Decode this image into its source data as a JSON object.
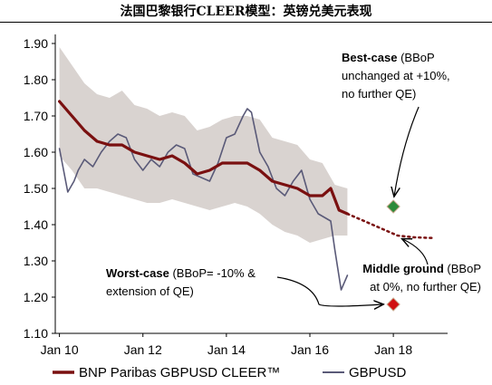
{
  "chart_data": {
    "type": "line",
    "title": "法国巴黎银行CLEER模型：英镑兑美元表现",
    "xlabel": "",
    "ylabel": "",
    "xlim": [
      2009.9,
      2019.3
    ],
    "ylim": [
      1.1,
      1.92
    ],
    "x_ticks": [
      {
        "value": 2010,
        "label": "Jan 10"
      },
      {
        "value": 2012,
        "label": "Jan 12"
      },
      {
        "value": 2014,
        "label": "Jan 14"
      },
      {
        "value": 2016,
        "label": "Jan 16"
      },
      {
        "value": 2018,
        "label": "Jan 18"
      }
    ],
    "y_ticks": [
      {
        "value": 1.9,
        "label": "1.90"
      },
      {
        "value": 1.8,
        "label": "1.80"
      },
      {
        "value": 1.7,
        "label": "1.70"
      },
      {
        "value": 1.6,
        "label": "1.60"
      },
      {
        "value": 1.5,
        "label": "1.50"
      },
      {
        "value": 1.4,
        "label": "1.40"
      },
      {
        "value": 1.3,
        "label": "1.30"
      },
      {
        "value": 1.2,
        "label": "1.20"
      },
      {
        "value": 1.1,
        "label": "1.10"
      }
    ],
    "grid": false,
    "legend_position": "bottom",
    "band": {
      "x": [
        2010.0,
        2010.3,
        2010.6,
        2010.9,
        2011.2,
        2011.5,
        2011.8,
        2012.1,
        2012.4,
        2012.7,
        2013.0,
        2013.3,
        2013.6,
        2013.9,
        2014.2,
        2014.5,
        2014.8,
        2015.1,
        2015.4,
        2015.7,
        2016.0,
        2016.3,
        2016.6,
        2016.9
      ],
      "upper": [
        1.89,
        1.84,
        1.79,
        1.76,
        1.75,
        1.77,
        1.73,
        1.72,
        1.7,
        1.71,
        1.7,
        1.66,
        1.67,
        1.69,
        1.7,
        1.7,
        1.69,
        1.64,
        1.63,
        1.62,
        1.58,
        1.57,
        1.51,
        1.5
      ],
      "lower": [
        1.59,
        1.55,
        1.5,
        1.5,
        1.49,
        1.48,
        1.47,
        1.46,
        1.46,
        1.47,
        1.46,
        1.45,
        1.44,
        1.45,
        1.46,
        1.45,
        1.43,
        1.4,
        1.38,
        1.37,
        1.35,
        1.36,
        1.37,
        1.37
      ]
    },
    "series": [
      {
        "name": "BNP Paribas GBPUSD CLEER™",
        "color": "#7a1010",
        "style": "solid",
        "x": [
          2010.0,
          2010.3,
          2010.6,
          2010.9,
          2011.2,
          2011.5,
          2011.8,
          2012.1,
          2012.4,
          2012.7,
          2013.0,
          2013.3,
          2013.6,
          2013.9,
          2014.2,
          2014.5,
          2014.8,
          2015.1,
          2015.4,
          2015.7,
          2016.0,
          2016.3,
          2016.5,
          2016.7,
          2016.9
        ],
        "y": [
          1.74,
          1.7,
          1.66,
          1.63,
          1.62,
          1.62,
          1.6,
          1.59,
          1.58,
          1.59,
          1.57,
          1.54,
          1.55,
          1.57,
          1.57,
          1.57,
          1.55,
          1.52,
          1.51,
          1.5,
          1.48,
          1.48,
          1.5,
          1.44,
          1.43
        ]
      },
      {
        "name": "GBPUSD",
        "color": "#5a5a78",
        "style": "solid",
        "x": [
          2010.0,
          2010.1,
          2010.2,
          2010.35,
          2010.45,
          2010.6,
          2010.8,
          2011.0,
          2011.2,
          2011.4,
          2011.6,
          2011.8,
          2012.0,
          2012.2,
          2012.4,
          2012.6,
          2012.8,
          2013.0,
          2013.2,
          2013.4,
          2013.6,
          2013.8,
          2014.0,
          2014.2,
          2014.4,
          2014.5,
          2014.6,
          2014.8,
          2015.0,
          2015.2,
          2015.4,
          2015.6,
          2015.8,
          2016.0,
          2016.2,
          2016.35,
          2016.5,
          2016.6,
          2016.75,
          2016.9
        ],
        "y": [
          1.61,
          1.55,
          1.49,
          1.52,
          1.55,
          1.58,
          1.56,
          1.6,
          1.63,
          1.65,
          1.64,
          1.58,
          1.55,
          1.58,
          1.56,
          1.6,
          1.62,
          1.61,
          1.54,
          1.53,
          1.52,
          1.57,
          1.64,
          1.65,
          1.7,
          1.72,
          1.71,
          1.6,
          1.56,
          1.5,
          1.48,
          1.52,
          1.55,
          1.47,
          1.43,
          1.42,
          1.41,
          1.33,
          1.22,
          1.26
        ]
      },
      {
        "style": "dotted",
        "color": "#7a1010",
        "x": [
          2016.9,
          2017.3,
          2017.7,
          2018.1,
          2018.5,
          2019.0
        ],
        "y": [
          1.43,
          1.41,
          1.39,
          1.37,
          1.365,
          1.363
        ]
      }
    ],
    "scenarios": [
      {
        "name": "Best-case",
        "x": 2018.0,
        "y": 1.45,
        "color": "#2e8b3a",
        "line1": "(BBoP",
        "line2": "unchanged at +10%,",
        "line3": "no further QE)"
      },
      {
        "name": "Middle ground",
        "x": 2018.4,
        "y": 1.365,
        "line1": "(BBoP",
        "line2": "at 0%, no further QE)"
      },
      {
        "name": "Worst-case",
        "x": 2018.0,
        "y": 1.18,
        "color": "#d01010",
        "line1": "(BBoP= -10% &",
        "line2": "extension of QE)"
      }
    ],
    "legend": [
      {
        "label": "BNP Paribas GBPUSD CLEER™",
        "color": "#7a1010"
      },
      {
        "label": "GBPUSD",
        "color": "#5a5a78"
      }
    ]
  }
}
